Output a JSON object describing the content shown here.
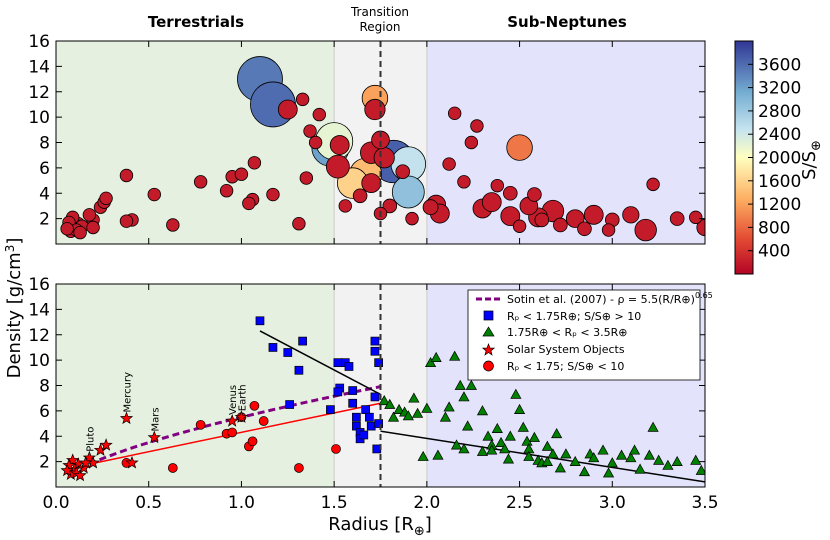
{
  "chart_data": [
    {
      "id": "top",
      "type": "scatter",
      "xlim": [
        0.0,
        3.5
      ],
      "ylim": [
        0,
        16
      ],
      "yticks": [
        2,
        4,
        6,
        8,
        10,
        12,
        14,
        16
      ],
      "regions": [
        {
          "name": "Terrestrials",
          "x": [
            0.0,
            1.5
          ],
          "color": "#e6f0e0"
        },
        {
          "name": "Transition",
          "x": [
            1.5,
            2.0
          ],
          "color": "#f2f2f2"
        },
        {
          "name": "Sub-Neptunes",
          "x": [
            2.0,
            3.5
          ],
          "color": "#e3e3fb"
        }
      ],
      "region_labels": {
        "terrestrials": "Terrestrials",
        "transition_1": "Transition",
        "transition_2": "Region",
        "subneptunes": "Sub-Neptunes"
      },
      "divider_x": 1.75,
      "colorbar": {
        "label": "S/S",
        "label_sub": "⊕",
        "min": 0,
        "max": 4000,
        "ticks": [
          400,
          800,
          1200,
          1600,
          2000,
          2400,
          2800,
          3200,
          3600
        ]
      },
      "points": [
        [
          1.1,
          13.0,
          3500,
          3.0
        ],
        [
          1.17,
          11.0,
          3600,
          3.0
        ],
        [
          1.25,
          10.6,
          200,
          1.0
        ],
        [
          1.33,
          11.4,
          200,
          0.5
        ],
        [
          1.48,
          7.6,
          3200,
          2.4
        ],
        [
          1.5,
          8.1,
          2200,
          2.4
        ],
        [
          1.53,
          7.8,
          200,
          1.0
        ],
        [
          1.52,
          6.1,
          200,
          1.3
        ],
        [
          1.6,
          4.8,
          1600,
          1.9
        ],
        [
          1.67,
          5.5,
          1400,
          2.0
        ],
        [
          1.7,
          7.2,
          200,
          1.2
        ],
        [
          1.72,
          11.5,
          1200,
          1.5
        ],
        [
          1.72,
          10.6,
          200,
          1.1
        ],
        [
          1.7,
          4.8,
          200,
          1.0
        ],
        [
          1.75,
          8.2,
          200,
          0.9
        ],
        [
          1.82,
          6.5,
          3700,
          2.8
        ],
        [
          1.77,
          6.8,
          200,
          1.1
        ],
        [
          1.87,
          5.7,
          200,
          0.6
        ],
        [
          1.9,
          6.3,
          2500,
          2.2
        ],
        [
          1.9,
          4.1,
          2900,
          2.0
        ],
        [
          1.8,
          3.0,
          200,
          0.6
        ],
        [
          1.64,
          3.8,
          200,
          0.6
        ],
        [
          1.56,
          3.0,
          200,
          0.5
        ],
        [
          1.75,
          2.4,
          200,
          0.5
        ],
        [
          1.92,
          2.0,
          200,
          0.5
        ],
        [
          1.4,
          8.0,
          200,
          0.5
        ],
        [
          1.42,
          10.2,
          200,
          0.5
        ],
        [
          1.37,
          8.9,
          200,
          0.5
        ],
        [
          2.5,
          7.6,
          900,
          1.5
        ],
        [
          2.05,
          3.1,
          200,
          1.0
        ],
        [
          2.07,
          2.4,
          200,
          1.0
        ],
        [
          2.3,
          2.8,
          200,
          1.0
        ],
        [
          2.35,
          3.3,
          200,
          1.0
        ],
        [
          2.45,
          2.2,
          200,
          1.0
        ],
        [
          2.55,
          3.0,
          200,
          0.9
        ],
        [
          2.6,
          2.1,
          200,
          1.0
        ],
        [
          2.68,
          2.6,
          200,
          1.2
        ],
        [
          2.8,
          2.0,
          200,
          0.9
        ],
        [
          2.9,
          2.3,
          200,
          1.0
        ],
        [
          3.18,
          1.1,
          200,
          1.2
        ],
        [
          3.1,
          2.3,
          200,
          0.8
        ],
        [
          3.35,
          2.0,
          200,
          0.6
        ],
        [
          3.5,
          1.3,
          200,
          0.8
        ],
        [
          2.45,
          4.0,
          200,
          0.6
        ],
        [
          2.38,
          4.6,
          200,
          0.5
        ],
        [
          2.58,
          3.9,
          200,
          0.6
        ],
        [
          2.2,
          4.9,
          200,
          0.5
        ],
        [
          2.62,
          1.9,
          200,
          0.6
        ],
        [
          2.72,
          1.5,
          200,
          0.6
        ],
        [
          3.0,
          1.9,
          200,
          0.6
        ],
        [
          3.22,
          4.7,
          200,
          0.5
        ],
        [
          2.15,
          10.3,
          200,
          0.5
        ],
        [
          2.24,
          8.0,
          200,
          0.5
        ],
        [
          2.12,
          6.3,
          200,
          0.5
        ],
        [
          2.27,
          9.3,
          200,
          0.5
        ],
        [
          2.98,
          1.1,
          200,
          0.5
        ],
        [
          3.45,
          2.1,
          200,
          0.5
        ],
        [
          2.02,
          2.9,
          200,
          0.7
        ],
        [
          2.85,
          1.2,
          200,
          0.6
        ],
        [
          2.5,
          1.4,
          200,
          0.5
        ],
        [
          0.38,
          5.4,
          200,
          0.5
        ],
        [
          0.53,
          3.9,
          200,
          0.5
        ],
        [
          0.78,
          4.9,
          200,
          0.5
        ],
        [
          0.95,
          5.3,
          200,
          0.5
        ],
        [
          1.0,
          5.5,
          200,
          0.5
        ],
        [
          1.35,
          5.2,
          200,
          0.5
        ],
        [
          1.06,
          3.5,
          200,
          0.5
        ],
        [
          1.04,
          3.2,
          200,
          0.5
        ],
        [
          0.92,
          4.2,
          200,
          0.5
        ],
        [
          1.17,
          3.9,
          200,
          0.5
        ],
        [
          1.07,
          6.4,
          200,
          0.5
        ],
        [
          0.63,
          1.5,
          200,
          0.5
        ],
        [
          1.31,
          1.6,
          200,
          0.5
        ],
        [
          0.2,
          1.9,
          200,
          0.5
        ],
        [
          0.24,
          2.9,
          200,
          0.5
        ],
        [
          0.26,
          3.3,
          200,
          0.5
        ],
        [
          0.27,
          3.6,
          200,
          0.5
        ],
        [
          0.41,
          1.9,
          200,
          0.5
        ],
        [
          0.38,
          1.8,
          200,
          0.5
        ],
        [
          0.18,
          2.3,
          200,
          0.5
        ],
        [
          0.1,
          1.3,
          200,
          0.5
        ],
        [
          0.12,
          1.6,
          200,
          0.5
        ],
        [
          0.14,
          1.4,
          200,
          0.5
        ],
        [
          0.08,
          1.0,
          200,
          0.5
        ],
        [
          0.09,
          2.1,
          200,
          0.5
        ],
        [
          0.07,
          1.7,
          200,
          0.5
        ],
        [
          0.11,
          1.1,
          200,
          0.5
        ],
        [
          0.13,
          0.9,
          200,
          0.5
        ],
        [
          0.2,
          1.3,
          200,
          0.5
        ],
        [
          0.06,
          1.2,
          200,
          0.5
        ]
      ]
    },
    {
      "id": "bottom",
      "type": "scatter",
      "title": "",
      "xlabel": "Radius [R",
      "xlabel_sub": "⊕",
      "xlabel_end": "]",
      "ylabel": "Density [g/cm",
      "ylabel_sup": "3",
      "ylabel_end": "]",
      "xlim": [
        0.0,
        3.5
      ],
      "ylim": [
        0,
        16
      ],
      "xticks": [
        "0.0",
        "0.5",
        "1.0",
        "1.5",
        "2.0",
        "2.5",
        "3.0",
        "3.5"
      ],
      "yticks": [
        2,
        4,
        6,
        8,
        10,
        12,
        14,
        16
      ],
      "divider_x": 1.75,
      "legend": {
        "placement": "top-right",
        "sotin": "Sotin et al. (2007) - ρ = 5.5(R/R⊕)",
        "sotin_exp": "0.65",
        "blue": "Rₚ < 1.75R⊕; S/S⊕ > 10",
        "green": "1.75R⊕ < Rₚ < 3.5R⊕",
        "star": "Solar System Objects",
        "red": "Rₚ < 1.75; S/S⊕ < 10"
      },
      "sotin_curve": {
        "x_start": 0.18,
        "x_end": 1.75,
        "coef": 5.5,
        "exp": 0.65,
        "color": "#800080"
      },
      "red_fit": {
        "x": [
          0.18,
          1.75
        ],
        "y": [
          1.8,
          6.6
        ],
        "color": "#ff0000"
      },
      "black_fit_1": {
        "x": [
          1.1,
          1.75
        ],
        "y": [
          12.3,
          7.3
        ]
      },
      "black_fit_2": {
        "x": [
          1.75,
          3.5
        ],
        "y": [
          4.4,
          0.4
        ]
      },
      "blue_points": [
        [
          1.1,
          13.1
        ],
        [
          1.17,
          11.0
        ],
        [
          1.25,
          10.6
        ],
        [
          1.33,
          11.5
        ],
        [
          1.31,
          9.2
        ],
        [
          1.26,
          6.5
        ],
        [
          1.48,
          6.1
        ],
        [
          1.52,
          9.8
        ],
        [
          1.53,
          7.8
        ],
        [
          1.52,
          7.5
        ],
        [
          1.56,
          9.8
        ],
        [
          1.58,
          9.5
        ],
        [
          1.6,
          7.6
        ],
        [
          1.6,
          6.6
        ],
        [
          1.62,
          5.5
        ],
        [
          1.62,
          4.8
        ],
        [
          1.64,
          4.3
        ],
        [
          1.64,
          3.8
        ],
        [
          1.66,
          4.1
        ],
        [
          1.67,
          6.1
        ],
        [
          1.69,
          5.5
        ],
        [
          1.7,
          4.8
        ],
        [
          1.72,
          11.5
        ],
        [
          1.72,
          10.7
        ],
        [
          1.74,
          9.8
        ],
        [
          1.72,
          7.1
        ],
        [
          1.74,
          5.0
        ],
        [
          1.73,
          3.0
        ]
      ],
      "green_points": [
        [
          1.77,
          6.8
        ],
        [
          1.8,
          6.5
        ],
        [
          1.82,
          5.5
        ],
        [
          1.85,
          6.1
        ],
        [
          1.88,
          5.9
        ],
        [
          1.9,
          5.6
        ],
        [
          1.93,
          7.0
        ],
        [
          1.95,
          5.8
        ],
        [
          2.0,
          6.2
        ],
        [
          2.02,
          9.8
        ],
        [
          2.05,
          10.2
        ],
        [
          2.1,
          5.5
        ],
        [
          2.12,
          6.3
        ],
        [
          2.15,
          10.3
        ],
        [
          2.18,
          8.0
        ],
        [
          2.2,
          7.1
        ],
        [
          2.22,
          4.8
        ],
        [
          2.24,
          8.0
        ],
        [
          2.27,
          9.3
        ],
        [
          2.3,
          6.0
        ],
        [
          2.33,
          4.0
        ],
        [
          2.35,
          3.3
        ],
        [
          2.38,
          4.6
        ],
        [
          2.4,
          3.5
        ],
        [
          2.42,
          3.0
        ],
        [
          2.45,
          4.0
        ],
        [
          2.48,
          7.3
        ],
        [
          2.5,
          6.1
        ],
        [
          2.52,
          4.7
        ],
        [
          2.54,
          3.6
        ],
        [
          2.55,
          3.0
        ],
        [
          2.58,
          3.9
        ],
        [
          2.6,
          2.1
        ],
        [
          2.62,
          1.9
        ],
        [
          2.65,
          3.2
        ],
        [
          2.68,
          2.6
        ],
        [
          2.7,
          4.2
        ],
        [
          2.72,
          1.5
        ],
        [
          2.75,
          2.6
        ],
        [
          2.8,
          2.0
        ],
        [
          2.85,
          1.2
        ],
        [
          2.88,
          2.6
        ],
        [
          2.9,
          2.3
        ],
        [
          2.95,
          2.9
        ],
        [
          2.98,
          1.1
        ],
        [
          3.0,
          1.9
        ],
        [
          3.1,
          2.3
        ],
        [
          3.15,
          1.4
        ],
        [
          3.2,
          2.5
        ],
        [
          3.22,
          4.7
        ],
        [
          3.25,
          2.1
        ],
        [
          3.3,
          1.7
        ],
        [
          3.35,
          2.0
        ],
        [
          3.45,
          2.1
        ],
        [
          3.48,
          1.3
        ],
        [
          2.3,
          2.8
        ],
        [
          2.35,
          2.9
        ],
        [
          2.44,
          2.2
        ],
        [
          2.2,
          3.0
        ],
        [
          2.16,
          3.3
        ],
        [
          2.06,
          2.5
        ],
        [
          1.98,
          2.4
        ],
        [
          2.55,
          2.4
        ],
        [
          2.65,
          2.0
        ],
        [
          3.05,
          2.5
        ],
        [
          3.12,
          2.9
        ]
      ],
      "red_points": [
        [
          0.63,
          1.5
        ],
        [
          0.78,
          4.9
        ],
        [
          0.92,
          4.2
        ],
        [
          0.95,
          4.3
        ],
        [
          1.0,
          5.5
        ],
        [
          1.04,
          3.2
        ],
        [
          1.06,
          3.6
        ],
        [
          1.07,
          6.4
        ],
        [
          1.12,
          5.2
        ],
        [
          1.31,
          1.5
        ],
        [
          1.51,
          3.0
        ],
        [
          0.38,
          1.9
        ]
      ],
      "star_points": [
        [
          0.38,
          5.4,
          "Mercury"
        ],
        [
          0.53,
          3.9,
          "Mars"
        ],
        [
          0.95,
          5.2,
          "Venus"
        ],
        [
          1.0,
          5.5,
          "Earth"
        ],
        [
          0.18,
          2.3,
          "Pluto"
        ],
        [
          0.2,
          1.9,
          ""
        ],
        [
          0.24,
          2.9,
          ""
        ],
        [
          0.27,
          3.3,
          ""
        ],
        [
          0.41,
          1.9,
          ""
        ],
        [
          0.1,
          1.4,
          ""
        ],
        [
          0.12,
          1.8,
          ""
        ],
        [
          0.08,
          1.0,
          ""
        ],
        [
          0.09,
          2.1,
          ""
        ],
        [
          0.07,
          1.7,
          ""
        ],
        [
          0.11,
          1.1,
          ""
        ],
        [
          0.13,
          0.9,
          ""
        ],
        [
          0.06,
          1.3,
          ""
        ],
        [
          0.15,
          1.5,
          ""
        ],
        [
          0.16,
          1.9,
          ""
        ]
      ]
    }
  ]
}
